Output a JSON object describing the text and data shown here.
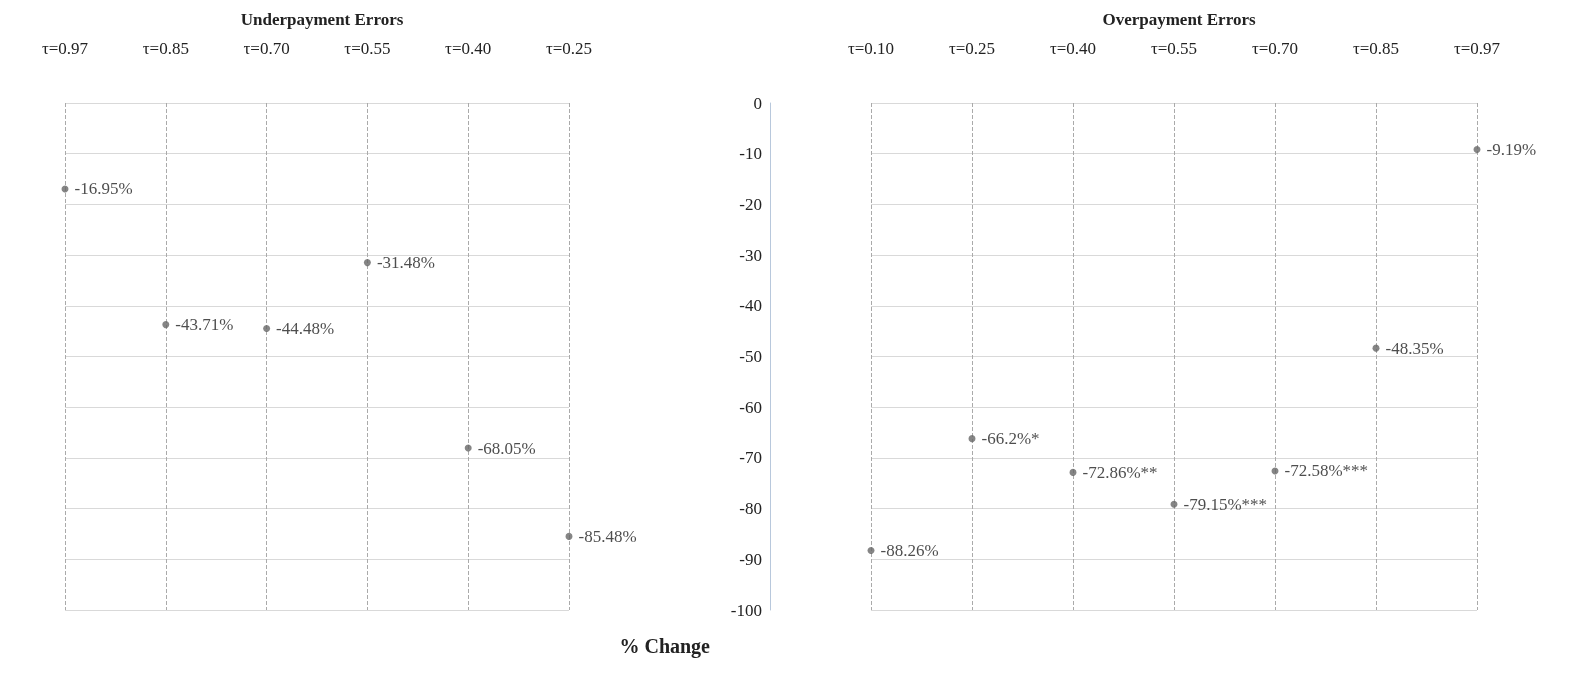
{
  "chart_data": [
    {
      "type": "scatter",
      "title": "Underpayment Errors",
      "xlabel": "% Change",
      "categories": [
        "τ=0.97",
        "τ=0.85",
        "τ=0.70",
        "τ=0.55",
        "τ=0.40",
        "τ=0.25"
      ],
      "series": [
        {
          "color": "#666666",
          "values": [
            -16.95,
            -43.71,
            -44.48,
            -31.48,
            -68.05,
            -85.48
          ],
          "value_labels": [
            "-16.95%",
            "-43.71%",
            "-44.48%",
            "-31.48%",
            "-68.05%",
            "-85.48%"
          ]
        }
      ],
      "ylim": [
        -100,
        0
      ],
      "yticks": [
        0,
        -10,
        -20,
        -30,
        -40,
        -50,
        -60,
        -70,
        -80,
        -90,
        -100
      ],
      "tick_labels": "x",
      "grid": true,
      "marker": "circle"
    },
    {
      "type": "scatter",
      "title": "Overpayment Errors",
      "categories": [
        "τ=0.10",
        "τ=0.25",
        "τ=0.40",
        "τ=0.55",
        "τ=0.70",
        "τ=0.85",
        "τ=0.97"
      ],
      "series": [
        {
          "color": "#666666",
          "values": [
            -88.26,
            -66.2,
            -72.86,
            -79.15,
            -72.58,
            -48.35,
            -9.19
          ],
          "value_labels": [
            "-88.26%",
            "-66.2%*",
            "-72.86%**",
            "-79.15%***",
            "-72.58%***",
            "-48.35%",
            "-9.19%"
          ]
        }
      ],
      "ylim": [
        -100,
        0
      ],
      "yticks": [
        0,
        -10,
        -20,
        -30,
        -40,
        -50,
        -60,
        -70,
        -80,
        -90,
        -100
      ],
      "grid": true,
      "marker": "circle"
    }
  ]
}
